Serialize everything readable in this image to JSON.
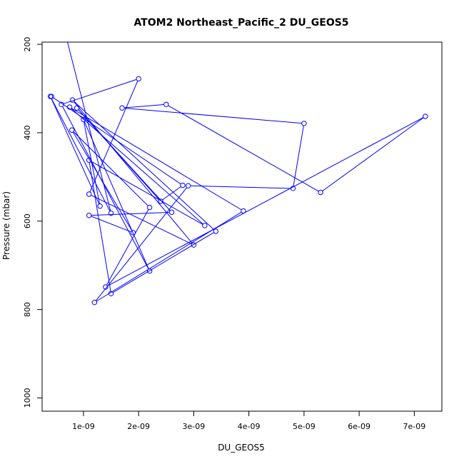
{
  "chart_data": {
    "type": "line",
    "title": "ATOM2 Northeast_Pacific_2 DU_GEOS5",
    "xlabel": "DU_GEOS5",
    "ylabel": "Pressure (mbar)",
    "xlim": [
      2.5e-10,
      7.5e-09
    ],
    "ylim": [
      1030,
      195
    ],
    "y_reversed": true,
    "x_ticks": [
      1e-09,
      2e-09,
      3e-09,
      4e-09,
      5e-09,
      6e-09,
      7e-09
    ],
    "x_tick_labels": [
      "1e-09",
      "2e-09",
      "3e-09",
      "4e-09",
      "5e-09",
      "6e-09",
      "7e-09"
    ],
    "y_ticks": [
      200,
      400,
      600,
      800,
      1000
    ],
    "y_tick_labels": [
      "200",
      "400",
      "600",
      "800",
      "1000"
    ],
    "grid": false,
    "series_color": "#0000ff",
    "series": [
      {
        "name": "",
        "style": "lines+open-circles",
        "x": [
          7e-10,
          1.5e-09,
          4e-10,
          1.3e-09,
          1e-09,
          2.2e-09,
          6e-10,
          2e-09,
          1.1e-09,
          3e-09,
          8e-10,
          3.4e-09,
          1.5e-09,
          1.1e-09,
          3.2e-09,
          7.5e-10,
          3.9e-09,
          1.2e-09,
          2.9e-09,
          4.8e-09,
          5e-09,
          1.7e-09,
          2.5e-09,
          5.3e-09,
          7.2e-09,
          1.4e-09,
          2.2e-09,
          7.9e-10,
          1.9e-09,
          1.1e-09,
          2.6e-09,
          8.8e-10,
          2.4e-09,
          2.8e-09,
          4.2e-10
        ],
        "y": [
          190,
          582,
          318,
          566,
          370,
          713,
          336,
          278,
          539,
          654,
          326,
          623,
          764,
          462,
          610,
          342,
          577,
          784,
          520,
          526,
          379,
          344,
          336,
          535,
          363,
          749,
          569,
          394,
          626,
          587,
          580,
          344,
          555,
          519,
          318
        ]
      }
    ]
  }
}
